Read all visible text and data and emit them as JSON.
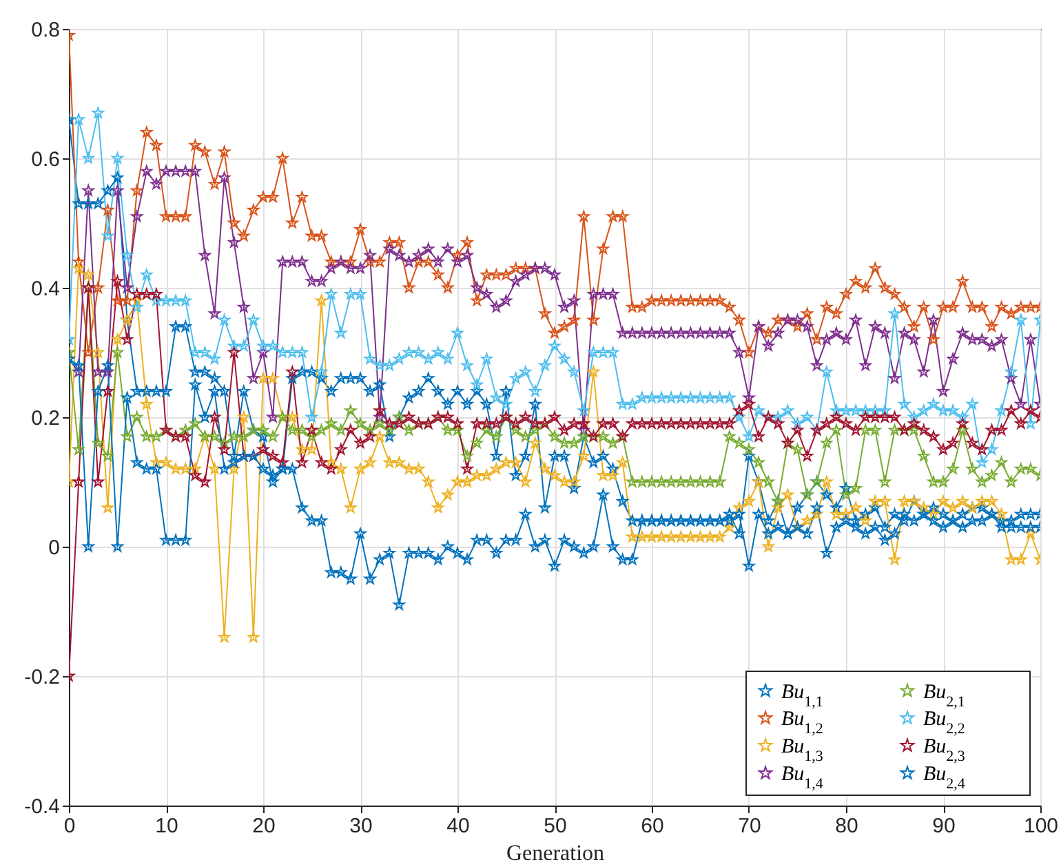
{
  "chart_data": {
    "type": "line",
    "xlabel": "Generation",
    "x": [
      0,
      1,
      2,
      3,
      4,
      5,
      6,
      7,
      8,
      9,
      10,
      11,
      12,
      13,
      14,
      15,
      16,
      17,
      18,
      19,
      20,
      21,
      22,
      23,
      24,
      25,
      26,
      27,
      28,
      29,
      30,
      31,
      32,
      33,
      34,
      35,
      36,
      37,
      38,
      39,
      40,
      41,
      42,
      43,
      44,
      45,
      46,
      47,
      48,
      49,
      50,
      51,
      52,
      53,
      54,
      55,
      56,
      57,
      58,
      59,
      60,
      61,
      62,
      63,
      64,
      65,
      66,
      67,
      68,
      69,
      70,
      71,
      72,
      73,
      74,
      75,
      76,
      77,
      78,
      79,
      80,
      81,
      82,
      83,
      84,
      85,
      86,
      87,
      88,
      89,
      90,
      91,
      92,
      93,
      94,
      95,
      96,
      97,
      98,
      99,
      100
    ],
    "xlim": [
      0,
      100
    ],
    "xticks": [
      0,
      10,
      20,
      30,
      40,
      50,
      60,
      70,
      80,
      90,
      100
    ],
    "ylim": [
      -0.4,
      0.8
    ],
    "yticks": [
      -0.4,
      -0.2,
      0,
      0.2,
      0.4,
      0.6,
      0.8
    ],
    "grid": true,
    "legend": "bottom right",
    "marker": "star",
    "series": [
      {
        "name": "Bu$_{1,1}$",
        "color": "#0072bd",
        "values": [
          0.66,
          0.53,
          0.53,
          0.53,
          0.55,
          0.57,
          0.35,
          0.24,
          0.24,
          0.24,
          0.24,
          0.34,
          0.34,
          0.27,
          0.27,
          0.26,
          0.24,
          0.14,
          0.24,
          0.18,
          0.17,
          0.1,
          0.12,
          0.26,
          0.27,
          0.27,
          0.26,
          0.24,
          0.26,
          0.26,
          0.26,
          0.24,
          0.25,
          0.17,
          0.2,
          0.23,
          0.24,
          0.26,
          0.24,
          0.22,
          0.24,
          0.22,
          0.24,
          0.22,
          0.14,
          0.24,
          0.11,
          0.14,
          0.22,
          0.06,
          0.14,
          0.14,
          0.09,
          0.17,
          0.13,
          0.14,
          0.12,
          0.07,
          0.04,
          0.04,
          0.04,
          0.04,
          0.04,
          0.04,
          0.04,
          0.04,
          0.04,
          0.04,
          0.05,
          0.02,
          0.14,
          0.1,
          0.04,
          0.07,
          0.02,
          0.06,
          0.08,
          0.1,
          0.08,
          0.06,
          0.09,
          0.04,
          0.05,
          0.06,
          0.03,
          0.05,
          0.04,
          0.07,
          0.05,
          0.06,
          0.05,
          0.04,
          0.05,
          0.06,
          0.06,
          0.05,
          0.04,
          0.04,
          0.05,
          0.05,
          0.05
        ]
      },
      {
        "name": "Bu$_{1,2}$",
        "color": "#d95319",
        "values": [
          0.79,
          0.44,
          0.3,
          0.4,
          0.52,
          0.38,
          0.38,
          0.55,
          0.64,
          0.62,
          0.51,
          0.51,
          0.51,
          0.62,
          0.61,
          0.56,
          0.61,
          0.5,
          0.48,
          0.52,
          0.54,
          0.54,
          0.6,
          0.5,
          0.54,
          0.48,
          0.48,
          0.44,
          0.44,
          0.44,
          0.49,
          0.44,
          0.44,
          0.47,
          0.47,
          0.4,
          0.44,
          0.44,
          0.42,
          0.4,
          0.45,
          0.47,
          0.38,
          0.42,
          0.42,
          0.42,
          0.43,
          0.43,
          0.43,
          0.36,
          0.33,
          0.34,
          0.35,
          0.51,
          0.35,
          0.46,
          0.51,
          0.51,
          0.37,
          0.37,
          0.38,
          0.38,
          0.38,
          0.38,
          0.38,
          0.38,
          0.38,
          0.38,
          0.37,
          0.35,
          0.3,
          0.34,
          0.33,
          0.35,
          0.35,
          0.34,
          0.36,
          0.32,
          0.37,
          0.36,
          0.39,
          0.41,
          0.4,
          0.43,
          0.4,
          0.39,
          0.37,
          0.34,
          0.37,
          0.32,
          0.37,
          0.37,
          0.41,
          0.37,
          0.37,
          0.34,
          0.37,
          0.36,
          0.37,
          0.37,
          0.37
        ]
      },
      {
        "name": "Bu$_{1,3}$",
        "color": "#edb120",
        "values": [
          0.1,
          0.43,
          0.42,
          0.3,
          0.06,
          0.32,
          0.35,
          0.38,
          0.22,
          0.13,
          0.13,
          0.12,
          0.12,
          0.12,
          0.17,
          0.12,
          -0.14,
          0.12,
          0.2,
          -0.14,
          0.26,
          0.26,
          0.2,
          0.2,
          0.15,
          0.15,
          0.38,
          0.13,
          0.12,
          0.06,
          0.12,
          0.13,
          0.17,
          0.13,
          0.13,
          0.12,
          0.12,
          0.1,
          0.06,
          0.08,
          0.1,
          0.1,
          0.11,
          0.11,
          0.12,
          0.13,
          0.13,
          0.1,
          0.16,
          0.12,
          0.11,
          0.1,
          0.1,
          0.14,
          0.27,
          0.11,
          0.11,
          0.13,
          0.015,
          0.015,
          0.015,
          0.015,
          0.015,
          0.015,
          0.015,
          0.015,
          0.015,
          0.015,
          0.03,
          0.06,
          0.07,
          0.1,
          0,
          0.06,
          0.08,
          0.03,
          0.04,
          0.05,
          0.1,
          0.05,
          0.05,
          0.06,
          0.04,
          0.07,
          0.07,
          -0.02,
          0.07,
          0.07,
          0.06,
          0.05,
          0.07,
          0.06,
          0.07,
          0.06,
          0.07,
          0.07,
          0.05,
          -0.02,
          -0.02,
          0.02,
          -0.02
        ]
      },
      {
        "name": "Bu$_{1,4}$",
        "color": "#7e2f8e",
        "values": [
          0.29,
          0.27,
          0.55,
          0.27,
          0.27,
          0.55,
          0.4,
          0.51,
          0.58,
          0.56,
          0.58,
          0.58,
          0.58,
          0.58,
          0.45,
          0.36,
          0.57,
          0.47,
          0.37,
          0.26,
          0.3,
          0.2,
          0.44,
          0.44,
          0.44,
          0.41,
          0.41,
          0.43,
          0.44,
          0.43,
          0.43,
          0.45,
          0.2,
          0.46,
          0.45,
          0.44,
          0.45,
          0.46,
          0.44,
          0.46,
          0.44,
          0.45,
          0.4,
          0.39,
          0.37,
          0.38,
          0.41,
          0.42,
          0.43,
          0.43,
          0.42,
          0.37,
          0.38,
          0.18,
          0.39,
          0.39,
          0.39,
          0.33,
          0.33,
          0.33,
          0.33,
          0.33,
          0.33,
          0.33,
          0.33,
          0.33,
          0.33,
          0.33,
          0.33,
          0.3,
          0.23,
          0.34,
          0.31,
          0.33,
          0.35,
          0.35,
          0.34,
          0.28,
          0.32,
          0.33,
          0.32,
          0.35,
          0.28,
          0.34,
          0.33,
          0.26,
          0.33,
          0.32,
          0.27,
          0.35,
          0.24,
          0.29,
          0.33,
          0.32,
          0.32,
          0.31,
          0.32,
          0.26,
          0.22,
          0.32,
          0.22
        ]
      },
      {
        "name": "Bu$_{2,1}$",
        "color": "#77ac30",
        "values": [
          0.3,
          0.15,
          0.4,
          0.16,
          0.14,
          0.3,
          0.17,
          0.2,
          0.17,
          0.17,
          0.18,
          0.17,
          0.18,
          0.19,
          0.17,
          0.17,
          0.16,
          0.17,
          0.17,
          0.18,
          0.18,
          0.17,
          0.2,
          0.18,
          0.18,
          0.17,
          0.18,
          0.19,
          0.18,
          0.21,
          0.19,
          0.18,
          0.19,
          0.18,
          0.2,
          0.18,
          0.19,
          0.19,
          0.2,
          0.18,
          0.18,
          0.14,
          0.16,
          0.18,
          0.17,
          0.2,
          0.18,
          0.17,
          0.18,
          0.19,
          0.17,
          0.16,
          0.16,
          0.17,
          0.17,
          0.17,
          0.16,
          0.17,
          0.1,
          0.1,
          0.1,
          0.1,
          0.1,
          0.1,
          0.1,
          0.1,
          0.1,
          0.1,
          0.17,
          0.16,
          0.15,
          0.13,
          0.1,
          0.07,
          0.16,
          0.15,
          0.08,
          0.1,
          0.16,
          0.18,
          0.08,
          0.09,
          0.18,
          0.18,
          0.1,
          0.18,
          0.18,
          0.18,
          0.14,
          0.1,
          0.1,
          0.12,
          0.18,
          0.12,
          0.1,
          0.11,
          0.13,
          0.1,
          0.12,
          0.12,
          0.11
        ]
      },
      {
        "name": "Bu$_{2,2}$",
        "color": "#4dbeee",
        "values": [
          0.32,
          0.66,
          0.6,
          0.67,
          0.48,
          0.6,
          0.45,
          0.37,
          0.42,
          0.38,
          0.38,
          0.38,
          0.38,
          0.3,
          0.3,
          0.29,
          0.35,
          0.31,
          0.31,
          0.35,
          0.31,
          0.31,
          0.3,
          0.3,
          0.3,
          0.2,
          0.27,
          0.39,
          0.33,
          0.39,
          0.39,
          0.29,
          0.28,
          0.28,
          0.29,
          0.3,
          0.3,
          0.29,
          0.3,
          0.29,
          0.33,
          0.28,
          0.25,
          0.29,
          0.23,
          0.22,
          0.26,
          0.27,
          0.24,
          0.28,
          0.31,
          0.29,
          0.27,
          0.21,
          0.3,
          0.3,
          0.3,
          0.22,
          0.22,
          0.23,
          0.23,
          0.23,
          0.23,
          0.23,
          0.23,
          0.23,
          0.23,
          0.23,
          0.23,
          0.2,
          0.17,
          0.21,
          0.2,
          0.2,
          0.21,
          0.19,
          0.2,
          0.18,
          0.27,
          0.21,
          0.21,
          0.21,
          0.21,
          0.21,
          0.21,
          0.36,
          0.22,
          0.2,
          0.21,
          0.22,
          0.21,
          0.21,
          0.2,
          0.22,
          0.13,
          0.15,
          0.21,
          0.27,
          0.35,
          0.19,
          0.35
        ]
      },
      {
        "name": "Bu$_{2,3}$",
        "color": "#a2142f",
        "values": [
          -0.2,
          0.1,
          0.4,
          0.1,
          0.24,
          0.41,
          0.32,
          0.39,
          0.39,
          0.39,
          0.18,
          0.17,
          0.17,
          0.11,
          0.1,
          0.2,
          0.15,
          0.3,
          0.14,
          0.14,
          0.15,
          0.14,
          0.13,
          0.27,
          0.13,
          0.18,
          0.13,
          0.12,
          0.15,
          0.18,
          0.16,
          0.17,
          0.21,
          0.19,
          0.19,
          0.2,
          0.19,
          0.19,
          0.2,
          0.2,
          0.19,
          0.12,
          0.19,
          0.19,
          0.19,
          0.2,
          0.19,
          0.2,
          0.19,
          0.19,
          0.2,
          0.18,
          0.19,
          0.19,
          0.17,
          0.19,
          0.19,
          0.17,
          0.19,
          0.19,
          0.19,
          0.19,
          0.19,
          0.19,
          0.19,
          0.19,
          0.19,
          0.19,
          0.19,
          0.21,
          0.22,
          0.17,
          0.2,
          0.19,
          0.16,
          0.18,
          0.14,
          0.18,
          0.19,
          0.2,
          0.19,
          0.18,
          0.2,
          0.2,
          0.2,
          0.2,
          0.18,
          0.19,
          0.18,
          0.17,
          0.15,
          0.16,
          0.19,
          0.16,
          0.15,
          0.18,
          0.18,
          0.21,
          0.19,
          0.21,
          0.2
        ]
      },
      {
        "name": "Bu$_{2,4}$",
        "color": "#0072bd",
        "values": [
          0.29,
          0.28,
          0,
          0.24,
          0.28,
          0,
          0.23,
          0.13,
          0.12,
          0.12,
          0.01,
          0.01,
          0.01,
          0.25,
          0.2,
          0.24,
          0.12,
          0.13,
          0.14,
          0.14,
          0.12,
          0.11,
          0.12,
          0.12,
          0.06,
          0.04,
          0.04,
          -0.04,
          -0.04,
          -0.05,
          0.02,
          -0.05,
          -0.02,
          -0.01,
          -0.09,
          -0.01,
          -0.01,
          -0.01,
          -0.02,
          0,
          -0.01,
          -0.02,
          0.01,
          0.01,
          -0.01,
          0.01,
          0.01,
          0.05,
          0,
          0.01,
          -0.03,
          0.01,
          0,
          -0.01,
          0,
          0.08,
          0,
          -0.02,
          -0.02,
          0.04,
          0.04,
          0.04,
          0.04,
          0.04,
          0.04,
          0.04,
          0.04,
          0.04,
          0.04,
          0.05,
          -0.03,
          0.05,
          0.02,
          0.03,
          0.02,
          0.03,
          0.02,
          0.06,
          -0.01,
          0.03,
          0.04,
          0.03,
          0.02,
          0.03,
          0.01,
          0.02,
          0.05,
          0.04,
          0.05,
          0.04,
          0.03,
          0.04,
          0.03,
          0.04,
          0.04,
          0.05,
          0.03,
          0.03,
          0.03,
          0.03,
          0.03
        ]
      }
    ]
  }
}
